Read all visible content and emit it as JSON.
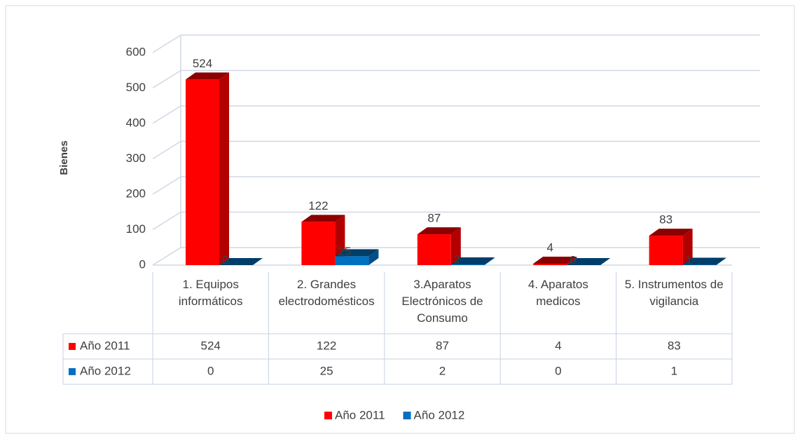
{
  "chart_data": {
    "type": "bar3d",
    "y_label": "Bienes",
    "categories": [
      "1. Equipos informáticos",
      "2. Grandes electrodomésticos",
      "3.Aparatos Electrónicos de Consumo",
      "4. Aparatos medicos",
      "5. Instrumentos de vigilancia"
    ],
    "series": [
      {
        "name": "Año 2011",
        "color": "#ff0000",
        "values": [
          524,
          122,
          87,
          4,
          83
        ]
      },
      {
        "name": "Año 2012",
        "color": "#0070c0",
        "values": [
          0,
          25,
          2,
          0,
          1
        ]
      }
    ],
    "ylim": [
      0,
      600
    ],
    "yticks": [
      0,
      100,
      200,
      300,
      400,
      500,
      600
    ],
    "grid": true,
    "data_table": true,
    "legend": "bottom"
  }
}
